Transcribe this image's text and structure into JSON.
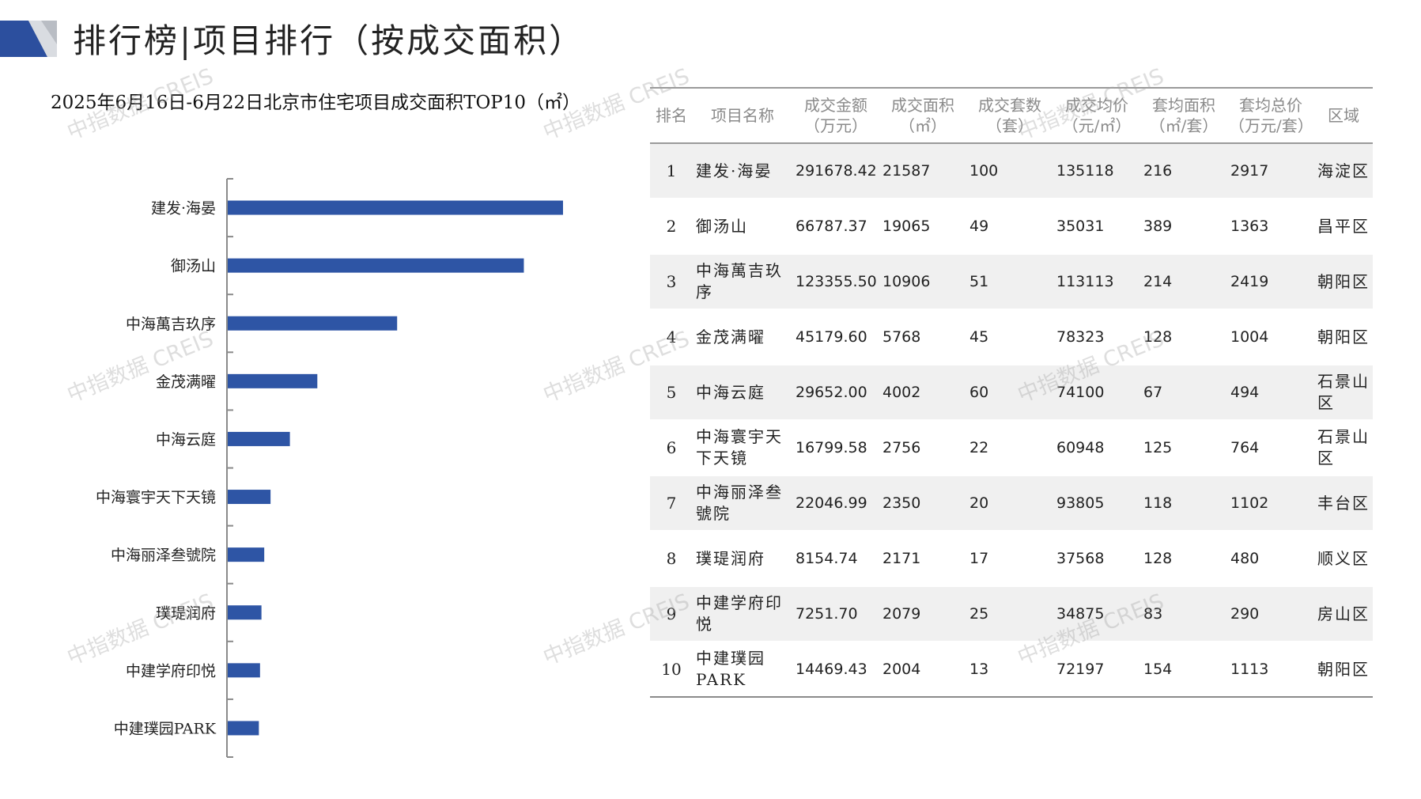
{
  "header": {
    "title": "排行榜|项目排行（按成交面积）"
  },
  "colors": {
    "bar": "#2e55a5",
    "header_deco_dark": "#2c4f9e",
    "header_deco_light": "#b9bdc4"
  },
  "watermark": {
    "text": "中指数据 CREIS"
  },
  "chart_data": {
    "type": "bar",
    "orientation": "horizontal",
    "title": "2025年6月16日-6月22日北京市住宅项目成交面积TOP10（㎡）",
    "categories": [
      "建发·海晏",
      "御汤山",
      "中海萬吉玖序",
      "金茂满曜",
      "中海云庭",
      "中海寰宇天下天镜",
      "中海丽泽叁號院",
      "璞瑅润府",
      "中建学府印悦",
      "中建璞园PARK"
    ],
    "values": [
      21587,
      19065,
      10906,
      5768,
      4002,
      2756,
      2350,
      2171,
      2079,
      2004
    ],
    "xlim": [
      0,
      28000
    ],
    "grid": false,
    "legend": "none",
    "bar_color": "#2e55a5"
  },
  "table": {
    "headers": [
      [
        "排名"
      ],
      [
        "项目名称"
      ],
      [
        "成交金额",
        "（万元）"
      ],
      [
        "成交面积",
        "（㎡）"
      ],
      [
        "成交套数",
        "（套）"
      ],
      [
        "成交均价",
        "（元/㎡）"
      ],
      [
        "套均面积",
        "（㎡/套）"
      ],
      [
        "套均总价",
        "（万元/套）"
      ],
      [
        "区域"
      ]
    ],
    "rows": [
      [
        "1",
        "建发·海晏",
        "291678.42",
        "21587",
        "100",
        "135118",
        "216",
        "2917",
        "海淀区"
      ],
      [
        "2",
        "御汤山",
        "66787.37",
        "19065",
        "49",
        "35031",
        "389",
        "1363",
        "昌平区"
      ],
      [
        "3",
        "中海萬吉玖序",
        "123355.50",
        "10906",
        "51",
        "113113",
        "214",
        "2419",
        "朝阳区"
      ],
      [
        "4",
        "金茂满曜",
        "45179.60",
        "5768",
        "45",
        "78323",
        "128",
        "1004",
        "朝阳区"
      ],
      [
        "5",
        "中海云庭",
        "29652.00",
        "4002",
        "60",
        "74100",
        "67",
        "494",
        "石景山区"
      ],
      [
        "6",
        "中海寰宇天下天镜",
        "16799.58",
        "2756",
        "22",
        "60948",
        "125",
        "764",
        "石景山区"
      ],
      [
        "7",
        "中海丽泽叁號院",
        "22046.99",
        "2350",
        "20",
        "93805",
        "118",
        "1102",
        "丰台区"
      ],
      [
        "8",
        "璞瑅润府",
        "8154.74",
        "2171",
        "17",
        "37568",
        "128",
        "480",
        "顺义区"
      ],
      [
        "9",
        "中建学府印悦",
        "7251.70",
        "2079",
        "25",
        "34875",
        "83",
        "290",
        "房山区"
      ],
      [
        "10",
        "中建璞园PARK",
        "14469.43",
        "2004",
        "13",
        "72197",
        "154",
        "1113",
        "朝阳区"
      ]
    ]
  }
}
